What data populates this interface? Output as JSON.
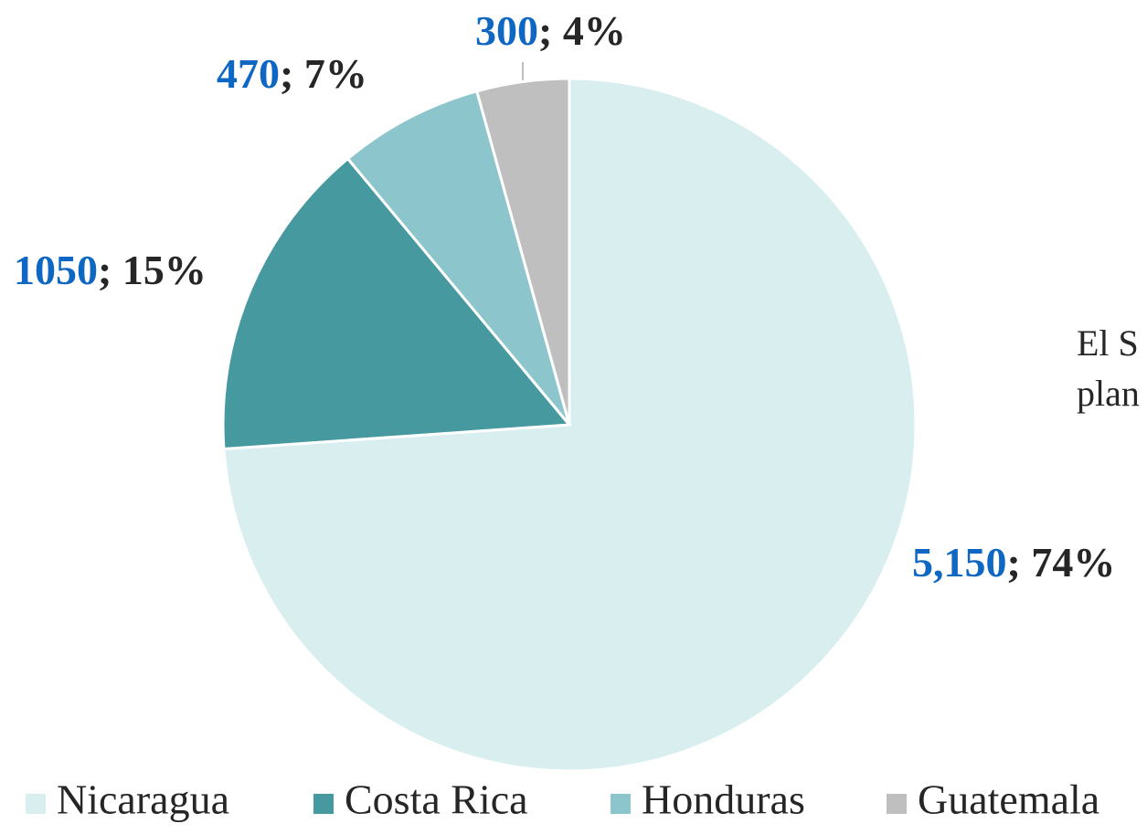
{
  "chart_data": {
    "type": "pie",
    "categories": [
      "Nicaragua",
      "Costa Rica",
      "Honduras",
      "Guatemala"
    ],
    "values": [
      5150,
      1050,
      470,
      300
    ],
    "value_labels": [
      "5,150",
      "1050",
      "470",
      "300"
    ],
    "percent_labels": [
      "; 74%",
      "; 15%",
      "; 7%",
      "; 4%"
    ],
    "colors": [
      "#d9eeee",
      "#46999f",
      "#8cc6cc",
      "#bfbfbf"
    ],
    "legend": "bottom",
    "annotations": [
      "El S",
      "plan"
    ]
  }
}
